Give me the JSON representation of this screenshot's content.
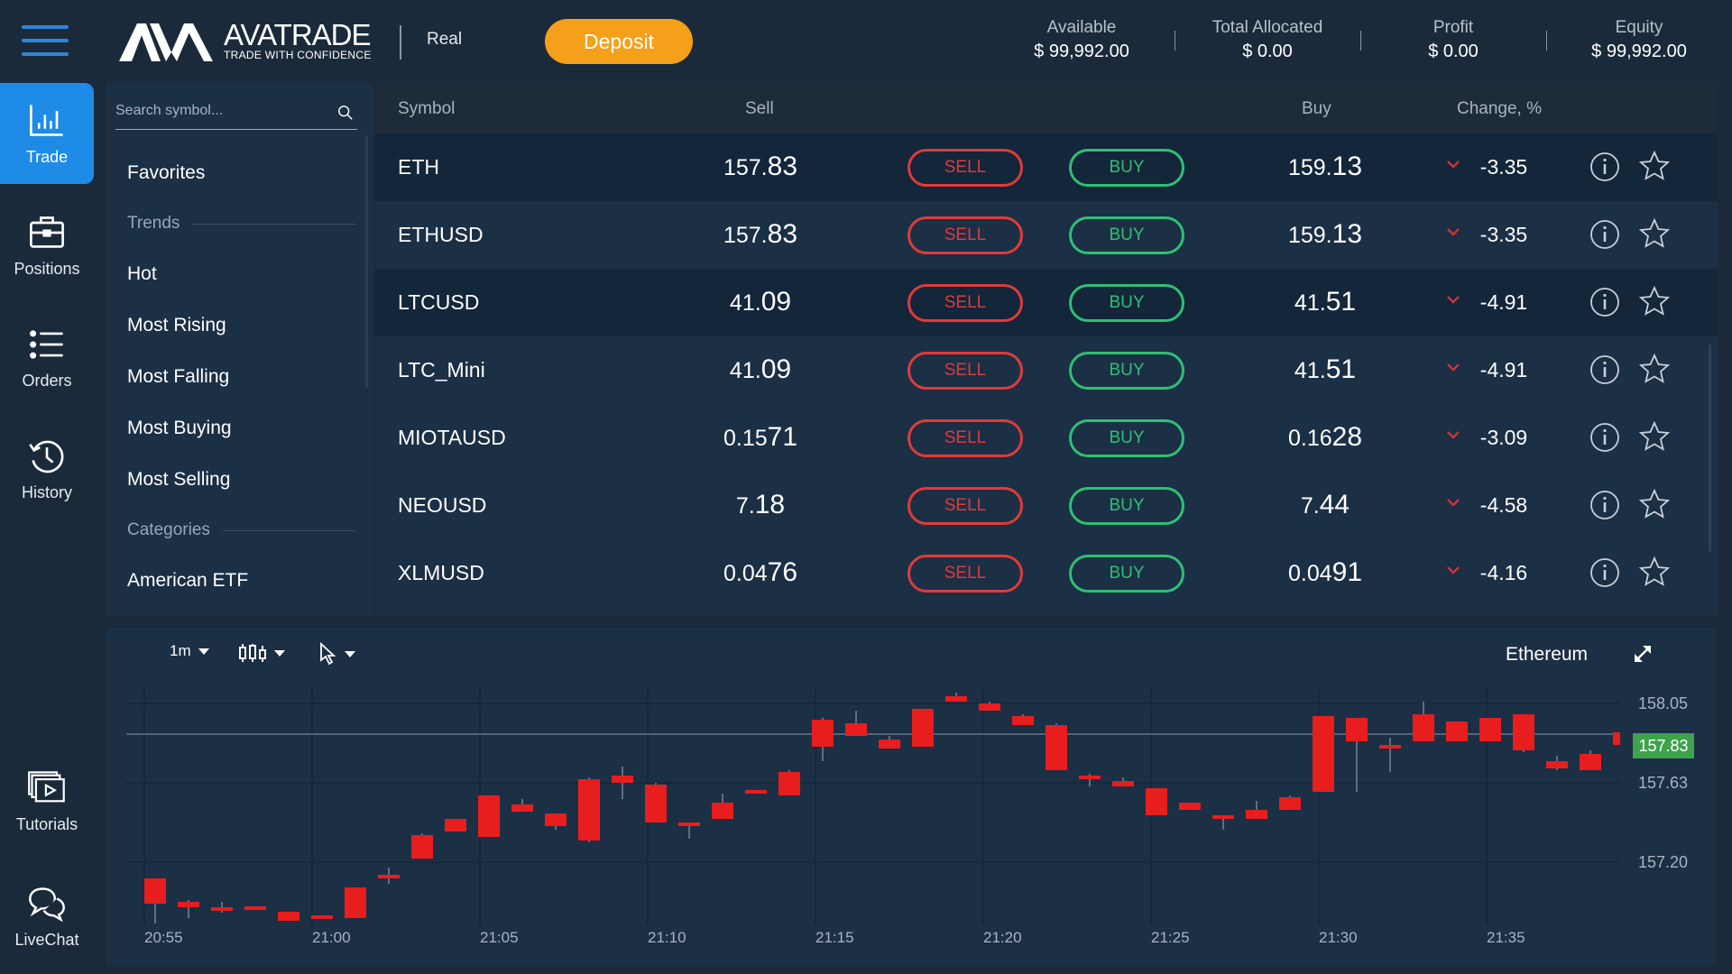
{
  "header": {
    "brand": "AVATRADE",
    "tagline": "TRADE WITH CONFIDENCE",
    "account_mode": "Real",
    "deposit_label": "Deposit",
    "stats": [
      {
        "label": "Available",
        "value": "$ 99,992.00"
      },
      {
        "label": "Total Allocated",
        "value": "$ 0.00"
      },
      {
        "label": "Profit",
        "value": "$ 0.00"
      },
      {
        "label": "Equity",
        "value": "$ 99,992.00"
      }
    ]
  },
  "nav": {
    "items": [
      {
        "label": "Trade",
        "icon": "bar-chart-icon",
        "active": true
      },
      {
        "label": "Positions",
        "icon": "briefcase-icon"
      },
      {
        "label": "Orders",
        "icon": "list-icon"
      },
      {
        "label": "History",
        "icon": "history-icon"
      },
      {
        "label": "Tutorials",
        "icon": "video-icon"
      },
      {
        "label": "LiveChat",
        "icon": "chat-icon"
      }
    ]
  },
  "sidebar": {
    "search_placeholder": "Search symbol...",
    "favorites": "Favorites",
    "trends_heading": "Trends",
    "trends": [
      "Hot",
      "Most Rising",
      "Most Falling",
      "Most Buying",
      "Most Selling"
    ],
    "categories_heading": "Categories",
    "categories": [
      "American ETF"
    ]
  },
  "table": {
    "columns": {
      "symbol": "Symbol",
      "sell": "Sell",
      "buy": "Buy",
      "change": "Change, %"
    },
    "sell_label": "SELL",
    "buy_label": "BUY",
    "rows": [
      {
        "symbol": "ETH",
        "sell_a": "157.",
        "sell_b": "83",
        "buy_a": "159.",
        "buy_b": "13",
        "change": "-3.35"
      },
      {
        "symbol": "ETHUSD",
        "sell_a": "157.",
        "sell_b": "83",
        "buy_a": "159.",
        "buy_b": "13",
        "change": "-3.35"
      },
      {
        "symbol": "LTCUSD",
        "sell_a": "41.",
        "sell_b": "09",
        "buy_a": "41.",
        "buy_b": "51",
        "change": "-4.91"
      },
      {
        "symbol": "LTC_Mini",
        "sell_a": "41.",
        "sell_b": "09",
        "buy_a": "41.",
        "buy_b": "51",
        "change": "-4.91"
      },
      {
        "symbol": "MIOTAUSD",
        "sell_a": "0.15",
        "sell_b": "71",
        "buy_a": "0.16",
        "buy_b": "28",
        "change": "-3.09"
      },
      {
        "symbol": "NEOUSD",
        "sell_a": "7.",
        "sell_b": "18",
        "buy_a": "7.",
        "buy_b": "44",
        "change": "-4.58"
      },
      {
        "symbol": "XLMUSD",
        "sell_a": "0.04",
        "sell_b": "76",
        "buy_a": "0.04",
        "buy_b": "91",
        "change": "-4.16"
      }
    ]
  },
  "chart": {
    "timeframe": "1m",
    "title": "Ethereum",
    "y_labels": [
      "158.05",
      "157.63",
      "157.20"
    ],
    "last_price": "157.83",
    "x_labels": [
      "20:55",
      "21:00",
      "21:05",
      "21:10",
      "21:15",
      "21:20",
      "21:25",
      "21:30",
      "21:35"
    ]
  },
  "colors": {
    "accent": "#1e8be6",
    "deposit": "#f5a01a",
    "sell": "#e03a3a",
    "buy": "#2fbf75",
    "up_candle": "#1fba68",
    "down_candle": "#e81e1e"
  }
}
